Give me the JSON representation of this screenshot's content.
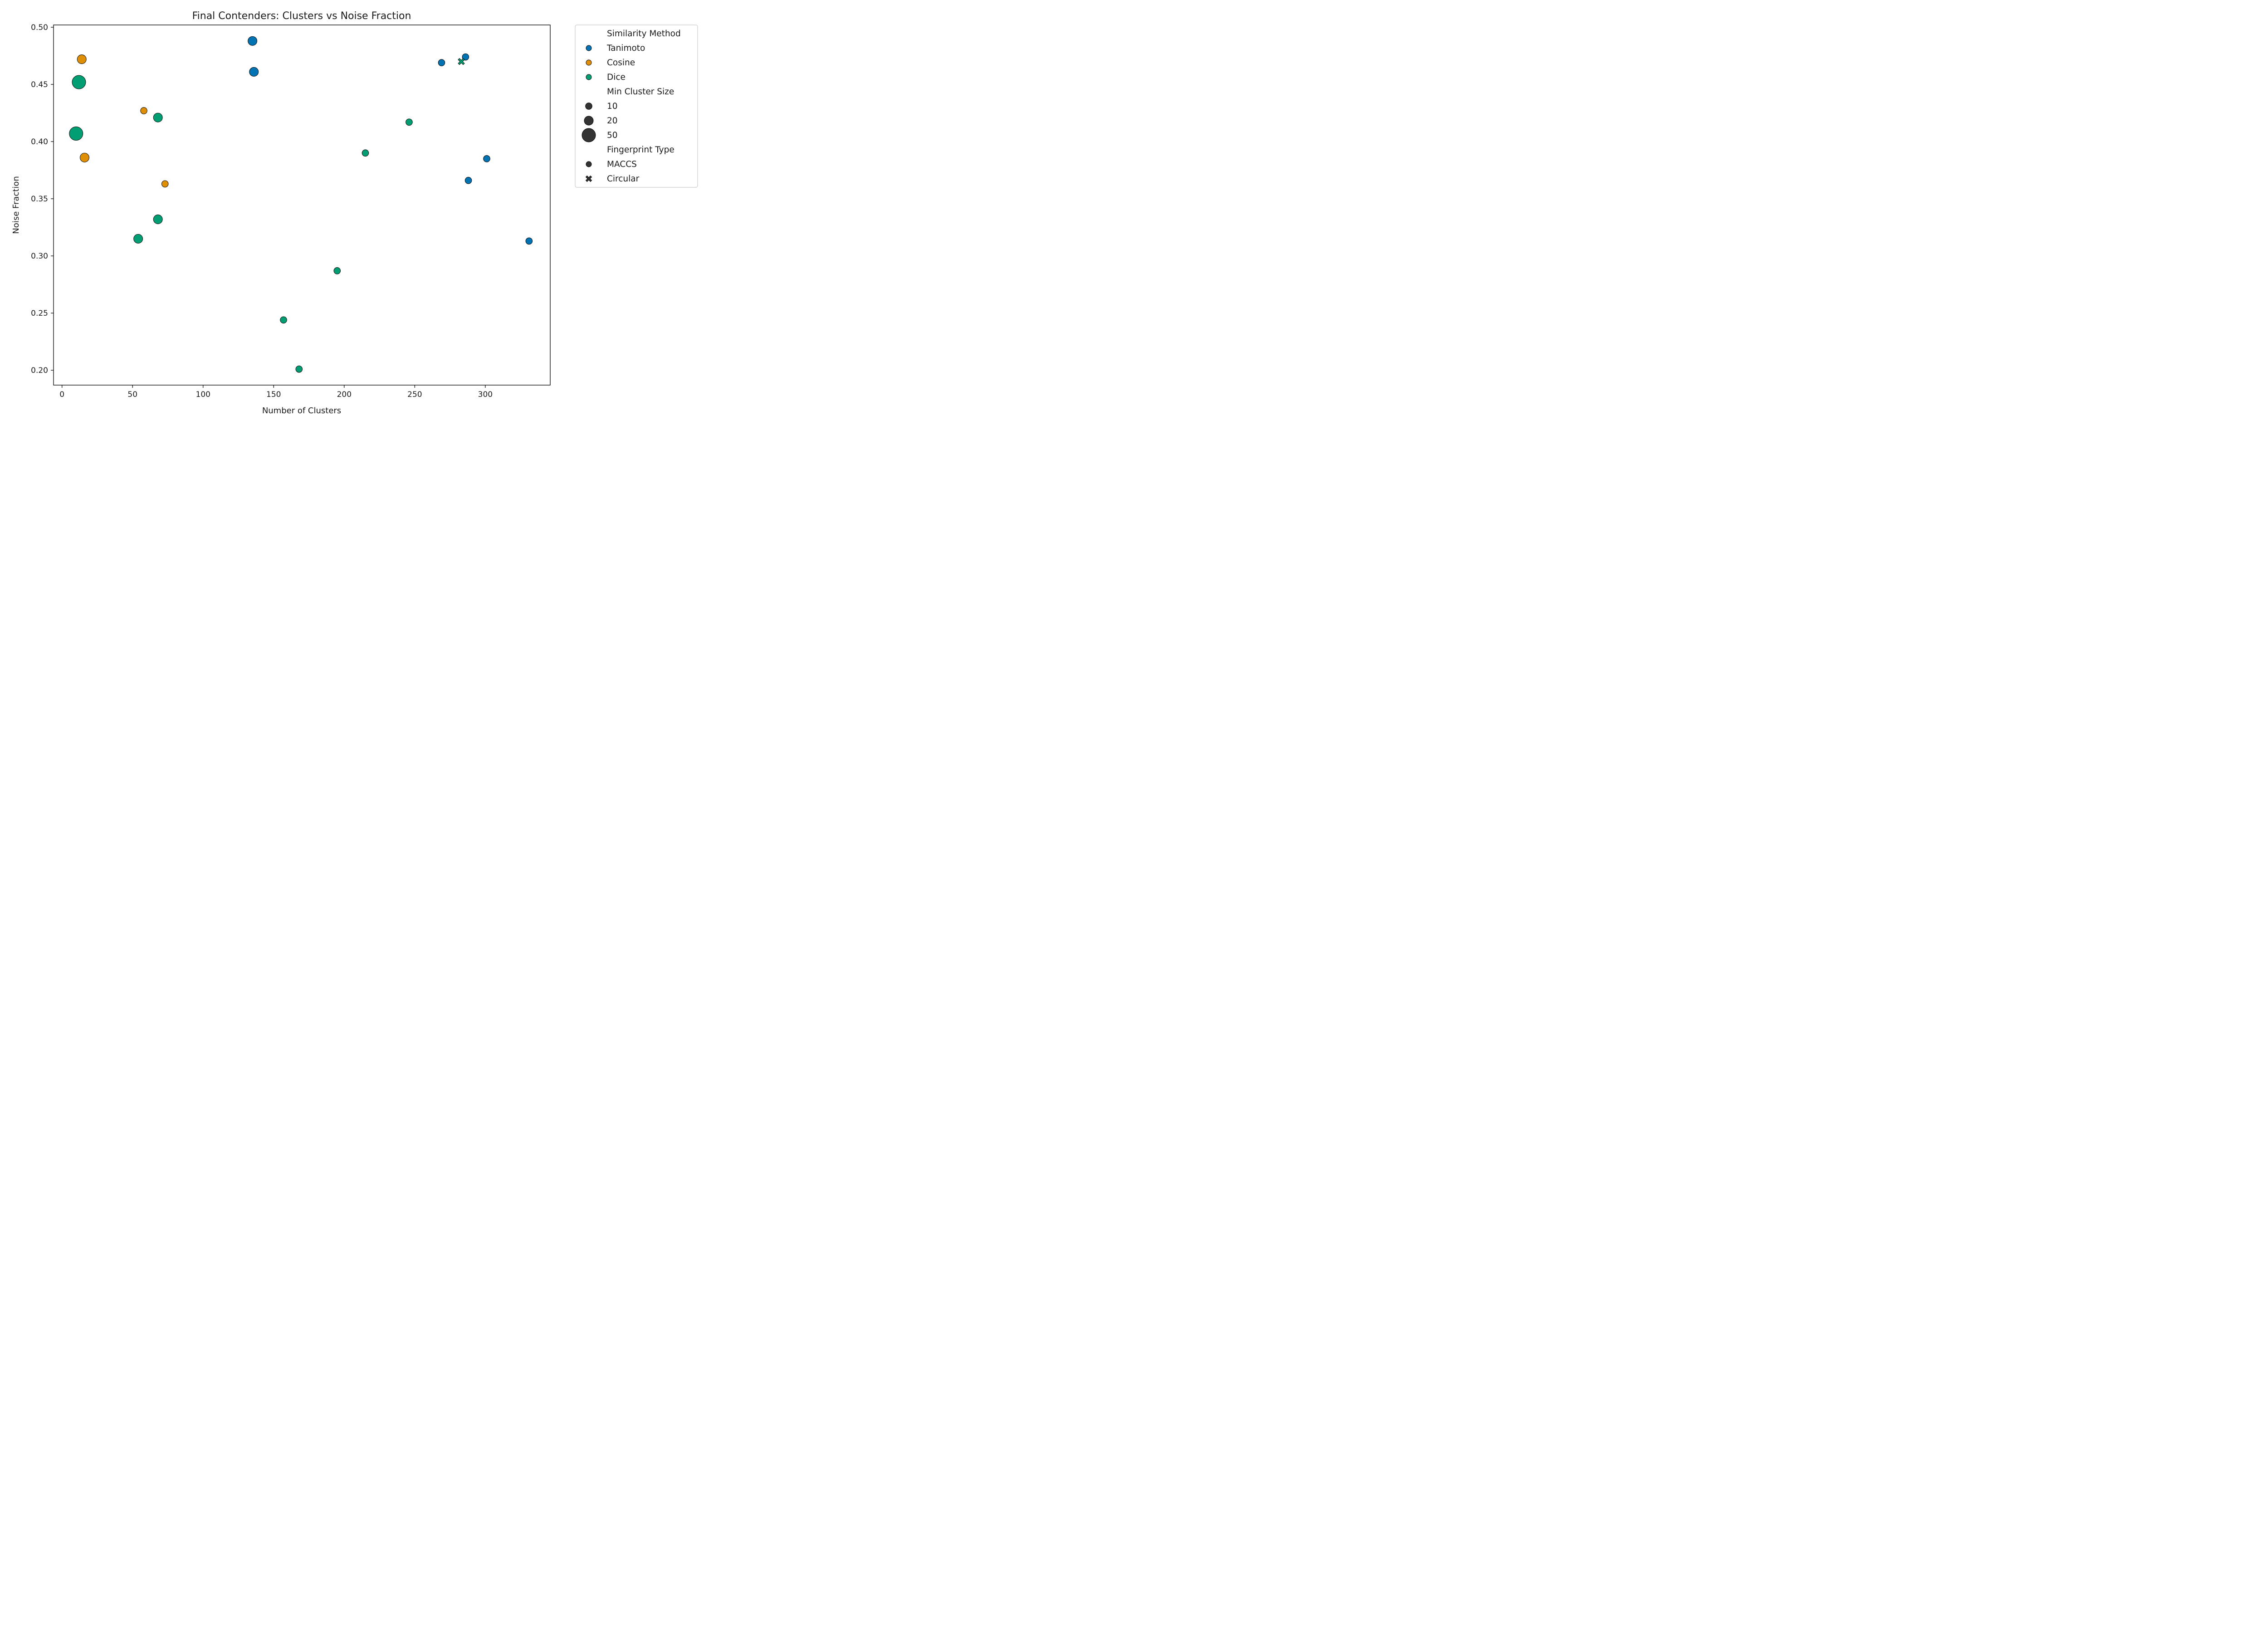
{
  "chart_data": {
    "type": "scatter",
    "title": "Final Contenders: Clusters vs Noise Fraction",
    "xlabel": "Number of Clusters",
    "ylabel": "Noise Fraction",
    "xlim": [
      -6,
      346
    ],
    "ylim": [
      0.187,
      0.502
    ],
    "x_ticks": [
      0,
      50,
      100,
      150,
      200,
      250,
      300
    ],
    "x_tick_labels": [
      "0",
      "50",
      "100",
      "150",
      "200",
      "250",
      "300"
    ],
    "y_ticks": [
      0.2,
      0.25,
      0.3,
      0.35,
      0.4,
      0.45,
      0.5
    ],
    "y_tick_labels": [
      "0.20",
      "0.25",
      "0.30",
      "0.35",
      "0.40",
      "0.45",
      "0.50"
    ],
    "grid": false,
    "legend_position": "outside-right",
    "colors": {
      "Tanimoto": "#0173b2",
      "Cosine": "#de8f05",
      "Dice": "#029e73"
    },
    "legend": {
      "hue_title": "Similarity Method",
      "hue_items": [
        {
          "label": " Tanimoto",
          "key": "Tanimoto"
        },
        {
          "label": " Cosine",
          "key": "Cosine"
        },
        {
          "label": " Dice",
          "key": "Dice"
        }
      ],
      "size_title": "Min Cluster Size",
      "size_items": [
        {
          "label": "10",
          "value": 10
        },
        {
          "label": "20",
          "value": 20
        },
        {
          "label": "50",
          "value": 50
        }
      ],
      "style_title": "Fingerprint Type",
      "style_items": [
        {
          "label": "MACCS",
          "marker": "circle"
        },
        {
          "label": "Circular",
          "marker": "x"
        }
      ]
    },
    "points": [
      {
        "x": 135,
        "y": 0.488,
        "method": "Tanimoto",
        "min_cluster_size": 20,
        "fingerprint": "MACCS"
      },
      {
        "x": 136,
        "y": 0.461,
        "method": "Tanimoto",
        "min_cluster_size": 20,
        "fingerprint": "MACCS"
      },
      {
        "x": 269,
        "y": 0.469,
        "method": "Tanimoto",
        "min_cluster_size": 10,
        "fingerprint": "MACCS"
      },
      {
        "x": 286,
        "y": 0.474,
        "method": "Tanimoto",
        "min_cluster_size": 10,
        "fingerprint": "MACCS"
      },
      {
        "x": 301,
        "y": 0.385,
        "method": "Tanimoto",
        "min_cluster_size": 10,
        "fingerprint": "MACCS"
      },
      {
        "x": 288,
        "y": 0.366,
        "method": "Tanimoto",
        "min_cluster_size": 10,
        "fingerprint": "MACCS"
      },
      {
        "x": 331,
        "y": 0.313,
        "method": "Tanimoto",
        "min_cluster_size": 10,
        "fingerprint": "MACCS"
      },
      {
        "x": 14,
        "y": 0.472,
        "method": "Cosine",
        "min_cluster_size": 20,
        "fingerprint": "MACCS"
      },
      {
        "x": 58,
        "y": 0.427,
        "method": "Cosine",
        "min_cluster_size": 10,
        "fingerprint": "MACCS"
      },
      {
        "x": 16,
        "y": 0.386,
        "method": "Cosine",
        "min_cluster_size": 20,
        "fingerprint": "MACCS"
      },
      {
        "x": 73,
        "y": 0.363,
        "method": "Cosine",
        "min_cluster_size": 10,
        "fingerprint": "MACCS"
      },
      {
        "x": 12,
        "y": 0.452,
        "method": "Dice",
        "min_cluster_size": 50,
        "fingerprint": "MACCS"
      },
      {
        "x": 10,
        "y": 0.407,
        "method": "Dice",
        "min_cluster_size": 50,
        "fingerprint": "MACCS"
      },
      {
        "x": 68,
        "y": 0.421,
        "method": "Dice",
        "min_cluster_size": 20,
        "fingerprint": "MACCS"
      },
      {
        "x": 68,
        "y": 0.332,
        "method": "Dice",
        "min_cluster_size": 20,
        "fingerprint": "MACCS"
      },
      {
        "x": 54,
        "y": 0.315,
        "method": "Dice",
        "min_cluster_size": 20,
        "fingerprint": "MACCS"
      },
      {
        "x": 246,
        "y": 0.417,
        "method": "Dice",
        "min_cluster_size": 10,
        "fingerprint": "MACCS"
      },
      {
        "x": 215,
        "y": 0.39,
        "method": "Dice",
        "min_cluster_size": 10,
        "fingerprint": "MACCS"
      },
      {
        "x": 195,
        "y": 0.287,
        "method": "Dice",
        "min_cluster_size": 10,
        "fingerprint": "MACCS"
      },
      {
        "x": 157,
        "y": 0.244,
        "method": "Dice",
        "min_cluster_size": 10,
        "fingerprint": "MACCS"
      },
      {
        "x": 168,
        "y": 0.201,
        "method": "Dice",
        "min_cluster_size": 10,
        "fingerprint": "MACCS"
      },
      {
        "x": 283,
        "y": 0.47,
        "method": "Dice",
        "min_cluster_size": 10,
        "fingerprint": "Circular"
      }
    ]
  }
}
